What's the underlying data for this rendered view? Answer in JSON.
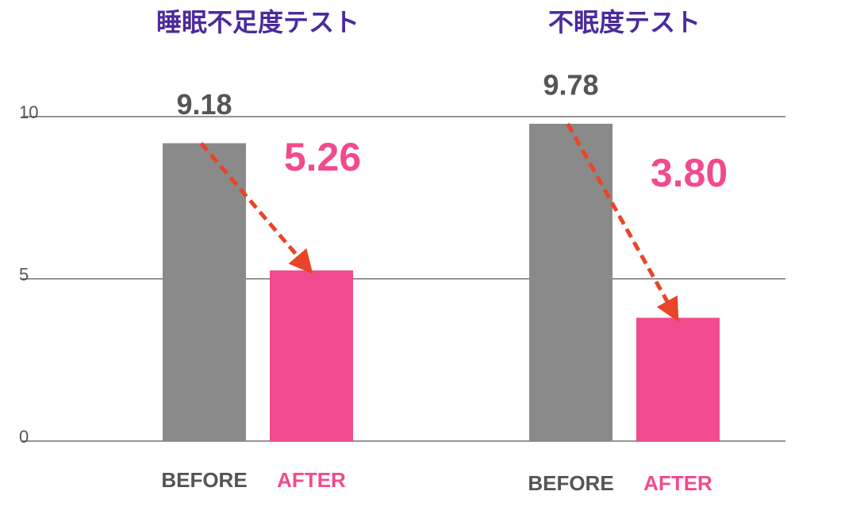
{
  "chart_data": {
    "type": "bar",
    "categories": [
      "睡眠不足度テスト",
      "不眠度テスト"
    ],
    "series": [
      {
        "name": "BEFORE",
        "color": "#8a8a8a",
        "values": [
          9.18,
          9.78
        ]
      },
      {
        "name": "AFTER",
        "color": "#f24a8e",
        "values": [
          5.26,
          3.8
        ],
        "value_labels": [
          "5.26",
          "3.80"
        ]
      }
    ],
    "ylim": [
      0,
      10
    ],
    "yticks": [
      0,
      5,
      10
    ],
    "grid": true
  }
}
